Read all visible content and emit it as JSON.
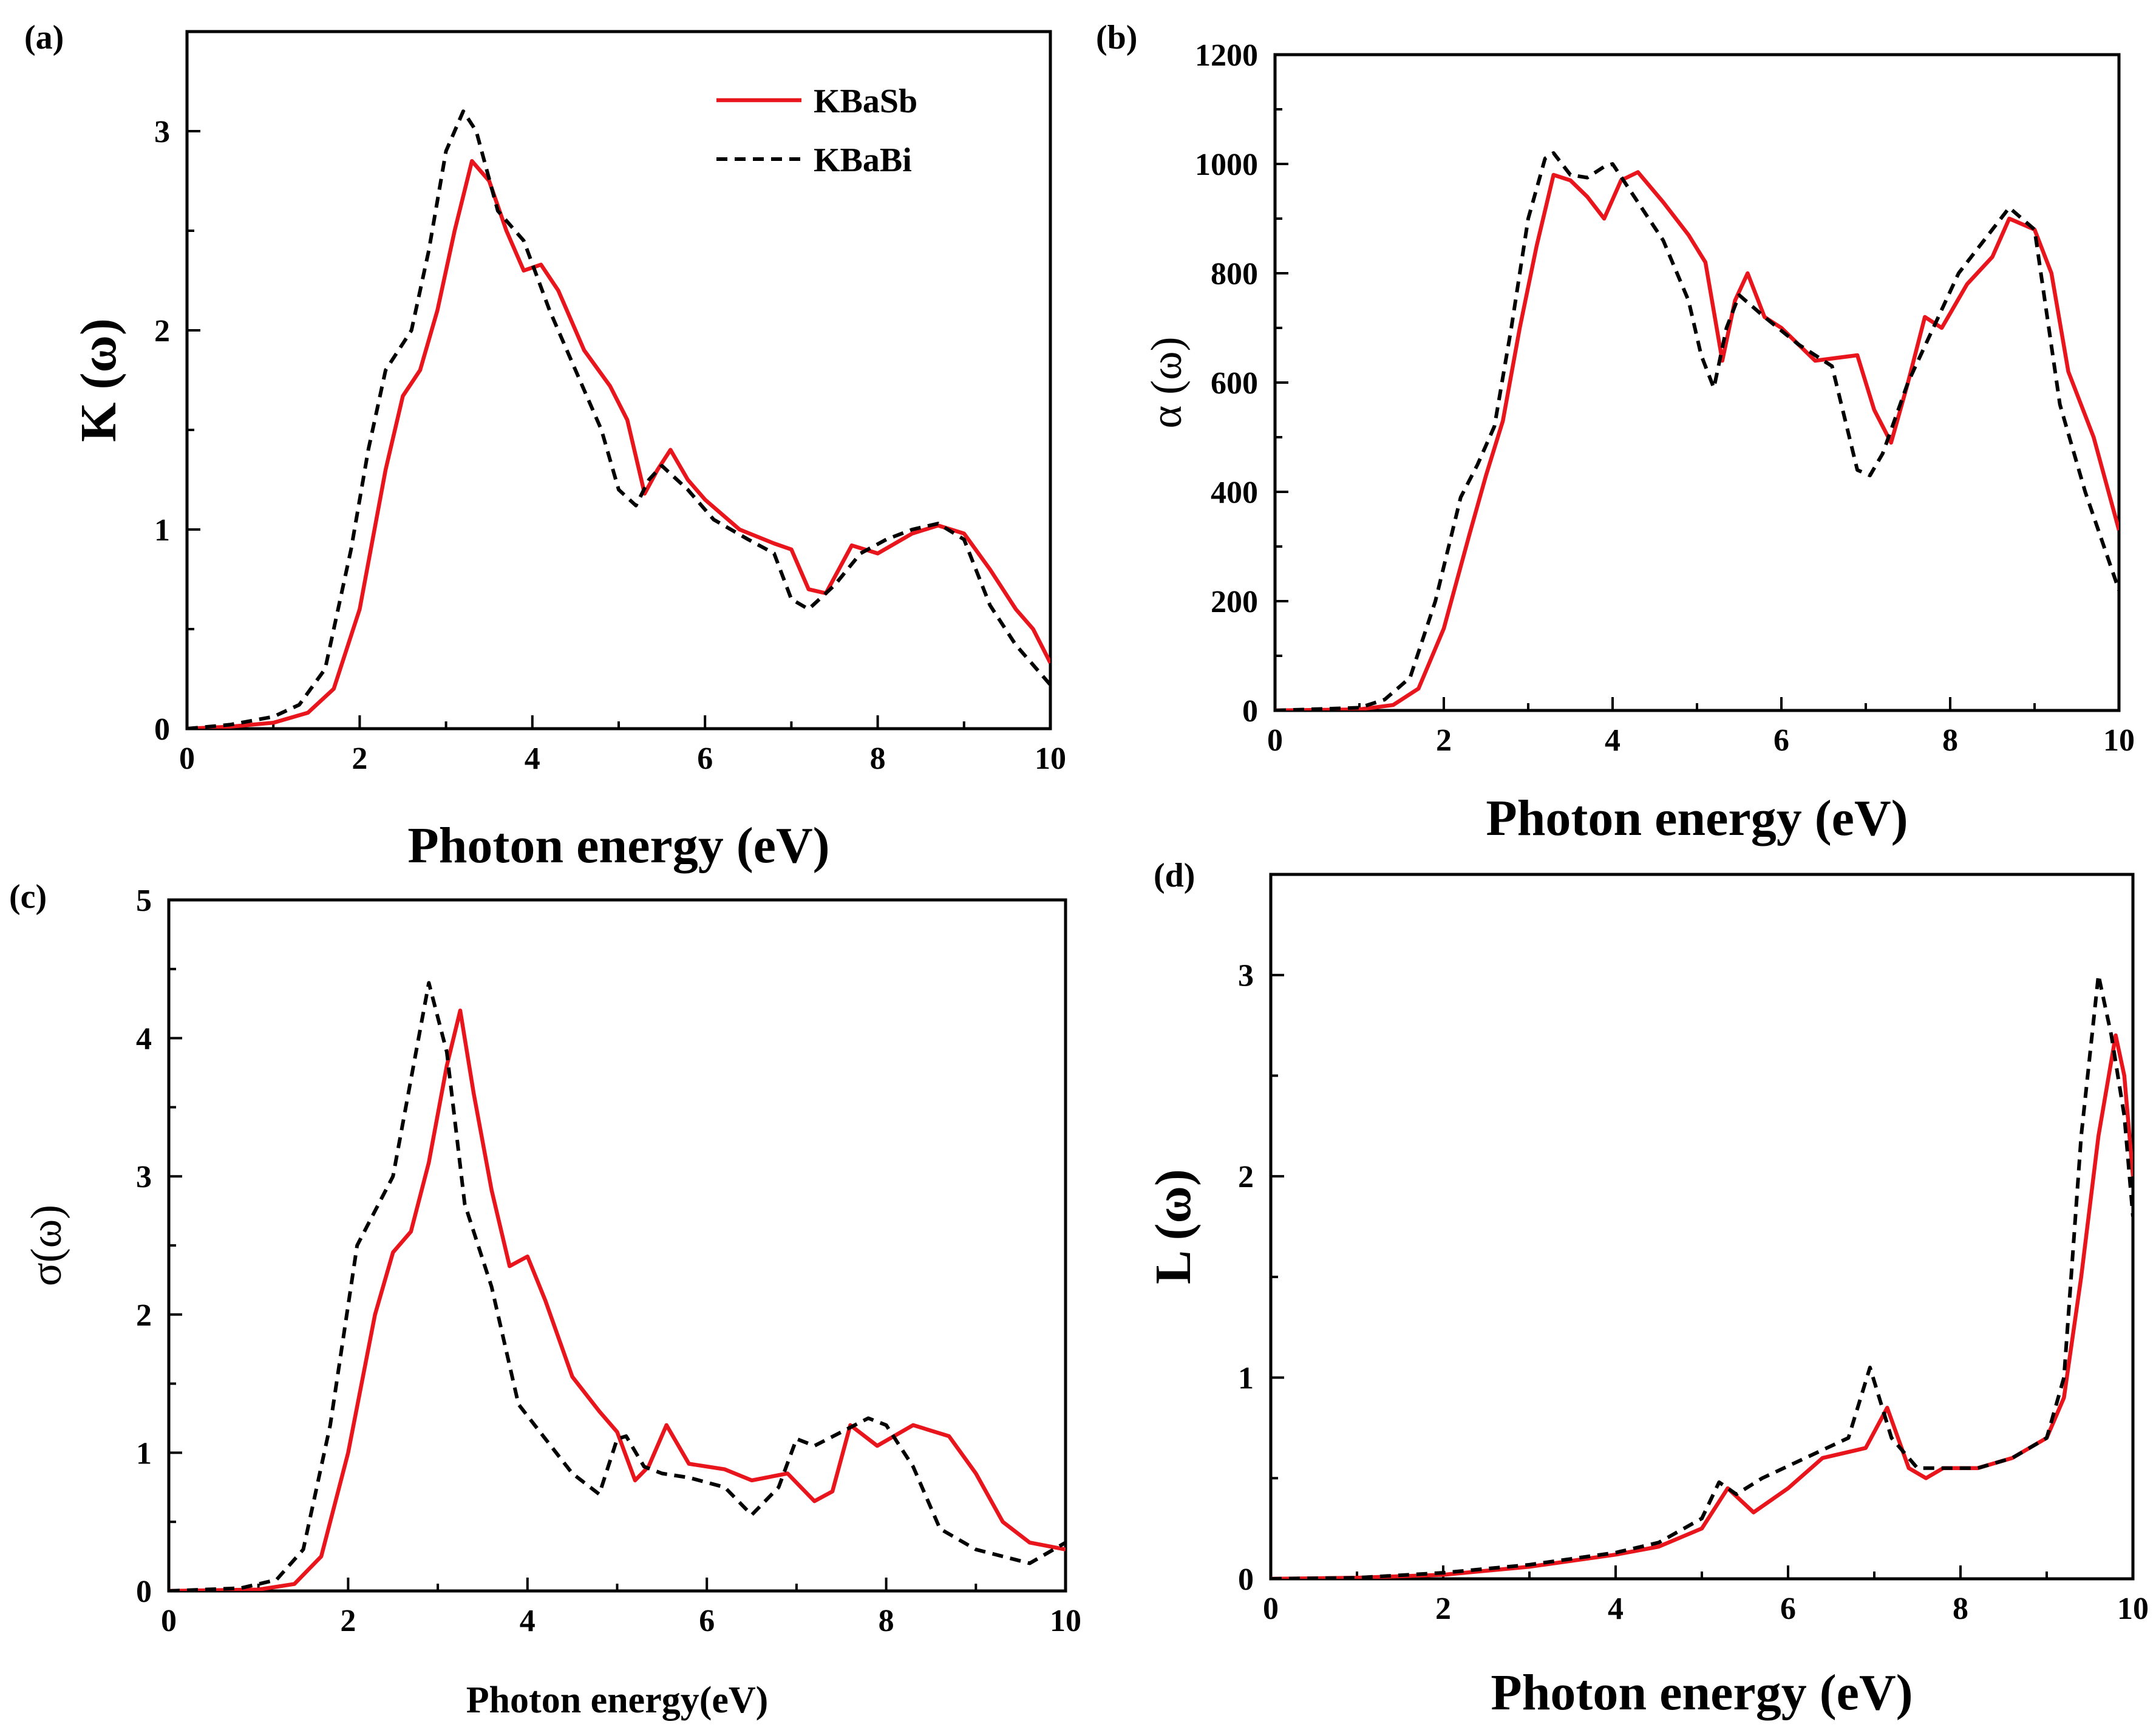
{
  "colors": {
    "sb": "#e8161c",
    "bi": "#000000"
  },
  "legend": {
    "sb_label": "KBaSb",
    "bi_label": "KBaBi"
  },
  "chart_data": [
    {
      "panel": "(a)",
      "type": "line",
      "title": "",
      "xlabel": "Photon energy (eV)",
      "ylabel": "K (ω)",
      "xlim": [
        0,
        10
      ],
      "ylim": [
        0,
        3.5
      ],
      "xticks": [
        0,
        2,
        4,
        6,
        8,
        10
      ],
      "yticks": [
        0,
        1,
        2,
        3
      ],
      "legend_position": "top-right",
      "series": [
        {
          "name": "KBaSb",
          "style": "solid",
          "x": [
            0,
            0.5,
            1,
            1.4,
            1.7,
            2,
            2.3,
            2.5,
            2.7,
            2.9,
            3.1,
            3.3,
            3.5,
            3.7,
            3.9,
            4.1,
            4.3,
            4.6,
            4.9,
            5.1,
            5.3,
            5.45,
            5.6,
            5.8,
            6,
            6.4,
            6.8,
            7,
            7.2,
            7.4,
            7.7,
            8,
            8.4,
            8.7,
            9,
            9.3,
            9.6,
            9.8,
            10
          ],
          "y": [
            0,
            0.01,
            0.03,
            0.08,
            0.2,
            0.6,
            1.3,
            1.67,
            1.8,
            2.1,
            2.5,
            2.85,
            2.75,
            2.5,
            2.3,
            2.33,
            2.2,
            1.9,
            1.72,
            1.55,
            1.18,
            1.3,
            1.4,
            1.25,
            1.15,
            1.0,
            0.93,
            0.9,
            0.7,
            0.68,
            0.92,
            0.88,
            0.98,
            1.02,
            0.98,
            0.8,
            0.6,
            0.5,
            0.33
          ]
        },
        {
          "name": "KBaBi",
          "style": "dashed",
          "x": [
            0,
            0.5,
            1,
            1.3,
            1.6,
            1.9,
            2.1,
            2.3,
            2.6,
            2.8,
            3.0,
            3.2,
            3.35,
            3.6,
            3.9,
            4.2,
            4.5,
            4.8,
            5.0,
            5.2,
            5.35,
            5.5,
            5.8,
            6.1,
            6.5,
            6.8,
            7.0,
            7.2,
            7.5,
            7.8,
            8.1,
            8.4,
            8.7,
            9.0,
            9.3,
            9.6,
            10
          ],
          "y": [
            0,
            0.02,
            0.06,
            0.12,
            0.3,
            0.9,
            1.4,
            1.8,
            2.0,
            2.4,
            2.9,
            3.1,
            3.0,
            2.6,
            2.45,
            2.1,
            1.8,
            1.5,
            1.2,
            1.12,
            1.25,
            1.32,
            1.2,
            1.05,
            0.95,
            0.88,
            0.65,
            0.6,
            0.72,
            0.88,
            0.95,
            1.0,
            1.03,
            0.95,
            0.62,
            0.42,
            0.22
          ]
        }
      ]
    },
    {
      "panel": "(b)",
      "type": "line",
      "title": "",
      "xlabel": "Photon energy (eV)",
      "ylabel": "α (ω)",
      "xlim": [
        0,
        10
      ],
      "ylim": [
        0,
        1200
      ],
      "xticks": [
        0,
        2,
        4,
        6,
        8,
        10
      ],
      "yticks": [
        0,
        200,
        400,
        600,
        800,
        1000,
        1200
      ],
      "series": [
        {
          "name": "KBaSb",
          "style": "solid",
          "x": [
            0,
            1,
            1.4,
            1.7,
            2,
            2.3,
            2.5,
            2.7,
            2.9,
            3.1,
            3.3,
            3.5,
            3.7,
            3.9,
            4.1,
            4.3,
            4.6,
            4.9,
            5.1,
            5.3,
            5.45,
            5.6,
            5.8,
            6,
            6.4,
            6.9,
            7.1,
            7.3,
            7.5,
            7.7,
            7.9,
            8.2,
            8.5,
            8.7,
            9,
            9.2,
            9.4,
            9.7,
            10
          ],
          "y": [
            0,
            2,
            10,
            40,
            150,
            320,
            430,
            530,
            700,
            850,
            980,
            970,
            940,
            900,
            970,
            985,
            930,
            870,
            820,
            640,
            750,
            800,
            720,
            700,
            640,
            650,
            550,
            490,
            600,
            720,
            700,
            780,
            830,
            900,
            880,
            800,
            620,
            500,
            330
          ]
        },
        {
          "name": "KBaBi",
          "style": "dashed",
          "x": [
            0,
            1,
            1.3,
            1.6,
            1.9,
            2.2,
            2.4,
            2.6,
            2.8,
            3.0,
            3.2,
            3.3,
            3.5,
            3.7,
            3.9,
            4.0,
            4.3,
            4.6,
            4.9,
            5.05,
            5.2,
            5.35,
            5.5,
            5.8,
            6.2,
            6.6,
            6.9,
            7.05,
            7.2,
            7.5,
            7.8,
            8.1,
            8.4,
            8.7,
            9.0,
            9.3,
            9.6,
            10
          ],
          "y": [
            0,
            5,
            20,
            60,
            200,
            390,
            450,
            520,
            700,
            900,
            1010,
            1020,
            980,
            975,
            995,
            1000,
            930,
            860,
            750,
            650,
            590,
            700,
            760,
            720,
            670,
            630,
            440,
            430,
            470,
            600,
            700,
            800,
            860,
            920,
            880,
            560,
            400,
            220
          ]
        }
      ]
    },
    {
      "panel": "(c)",
      "type": "line",
      "title": "",
      "xlabel": "Photon energy(eV)",
      "ylabel": "σ(ω)",
      "xlim": [
        0,
        10
      ],
      "ylim": [
        0,
        5
      ],
      "xticks": [
        0,
        2,
        4,
        6,
        8,
        10
      ],
      "yticks": [
        0,
        1,
        2,
        3,
        4,
        5
      ],
      "series": [
        {
          "name": "KBaSb",
          "style": "solid",
          "x": [
            0,
            1,
            1.4,
            1.7,
            2,
            2.3,
            2.5,
            2.7,
            2.9,
            3.1,
            3.25,
            3.4,
            3.6,
            3.8,
            4.0,
            4.2,
            4.5,
            4.8,
            5.0,
            5.2,
            5.35,
            5.55,
            5.8,
            6.2,
            6.5,
            6.9,
            7.2,
            7.4,
            7.6,
            7.9,
            8.3,
            8.7,
            9,
            9.3,
            9.6,
            10
          ],
          "y": [
            0,
            0.01,
            0.05,
            0.25,
            1.0,
            2.0,
            2.45,
            2.6,
            3.1,
            3.8,
            4.2,
            3.6,
            2.9,
            2.35,
            2.42,
            2.1,
            1.55,
            1.3,
            1.15,
            0.8,
            0.9,
            1.2,
            0.92,
            0.88,
            0.8,
            0.85,
            0.65,
            0.72,
            1.2,
            1.05,
            1.2,
            1.12,
            0.85,
            0.5,
            0.35,
            0.3
          ]
        },
        {
          "name": "KBaBi",
          "style": "dashed",
          "x": [
            0,
            0.8,
            1.2,
            1.5,
            1.8,
            2.1,
            2.3,
            2.5,
            2.7,
            2.9,
            3.1,
            3.3,
            3.6,
            3.9,
            4.2,
            4.5,
            4.8,
            5.0,
            5.1,
            5.3,
            5.5,
            5.8,
            6.2,
            6.5,
            6.8,
            7.0,
            7.2,
            7.5,
            7.8,
            8.0,
            8.3,
            8.6,
            9,
            9.3,
            9.6,
            10
          ],
          "y": [
            0,
            0.02,
            0.08,
            0.3,
            1.2,
            2.5,
            2.75,
            3.0,
            3.7,
            4.4,
            3.9,
            2.8,
            2.2,
            1.35,
            1.1,
            0.85,
            0.7,
            1.1,
            1.12,
            0.9,
            0.85,
            0.82,
            0.75,
            0.55,
            0.75,
            1.1,
            1.05,
            1.15,
            1.25,
            1.2,
            0.9,
            0.45,
            0.3,
            0.25,
            0.2,
            0.35
          ]
        }
      ]
    },
    {
      "panel": "(d)",
      "type": "line",
      "title": "",
      "xlabel": "Photon energy (eV)",
      "ylabel": "L (ω)",
      "xlim": [
        0,
        10
      ],
      "ylim": [
        0,
        3.5
      ],
      "xticks": [
        0,
        2,
        4,
        6,
        8,
        10
      ],
      "yticks": [
        0,
        1,
        2,
        3
      ],
      "series": [
        {
          "name": "KBaSb",
          "style": "solid",
          "x": [
            0,
            1,
            2,
            3,
            4,
            4.5,
            5,
            5.3,
            5.6,
            6,
            6.4,
            6.9,
            7.15,
            7.4,
            7.6,
            7.8,
            8.2,
            8.6,
            9,
            9.2,
            9.4,
            9.6,
            9.8,
            9.9,
            10
          ],
          "y": [
            0,
            0.005,
            0.02,
            0.06,
            0.12,
            0.16,
            0.25,
            0.45,
            0.33,
            0.45,
            0.6,
            0.65,
            0.85,
            0.55,
            0.5,
            0.55,
            0.55,
            0.6,
            0.7,
            0.9,
            1.5,
            2.2,
            2.7,
            2.5,
            2.0
          ]
        },
        {
          "name": "KBaBi",
          "style": "dashed",
          "x": [
            0,
            1,
            2,
            3,
            4,
            4.5,
            5,
            5.2,
            5.4,
            5.7,
            6.2,
            6.7,
            6.95,
            7.2,
            7.5,
            7.8,
            8.2,
            8.6,
            9,
            9.2,
            9.4,
            9.6,
            9.75,
            9.9,
            10
          ],
          "y": [
            0,
            0.005,
            0.03,
            0.07,
            0.13,
            0.18,
            0.3,
            0.48,
            0.42,
            0.5,
            0.6,
            0.7,
            1.05,
            0.7,
            0.55,
            0.55,
            0.55,
            0.6,
            0.7,
            1.0,
            2.2,
            3.0,
            2.7,
            2.3,
            1.8
          ]
        }
      ]
    }
  ]
}
